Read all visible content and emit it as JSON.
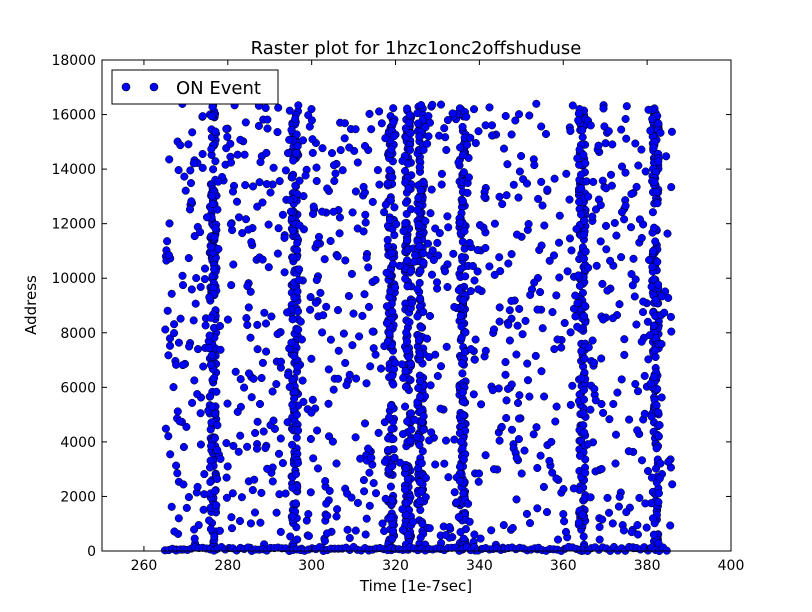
{
  "chart_data": {
    "type": "scatter",
    "title": "Raster plot for 1hzc1onc2offshuduse",
    "xlabel": "Time [1e-7sec]",
    "ylabel": "Address",
    "xlim": [
      250,
      400
    ],
    "ylim": [
      0,
      18000
    ],
    "x_ticks": [
      "260",
      "280",
      "300",
      "320",
      "340",
      "360",
      "380",
      "400"
    ],
    "y_ticks": [
      "0",
      "2000",
      "4000",
      "6000",
      "8000",
      "10000",
      "12000",
      "14000",
      "16000",
      "18000"
    ],
    "grid": false,
    "legend_position": "top-left",
    "series": [
      {
        "name": "ON Event",
        "marker": "circle",
        "color": "#0000ff",
        "dense_columns": [
          {
            "x": 276.5,
            "y_range": [
              0,
              16400
            ]
          },
          {
            "x": 296,
            "y_range": [
              0,
              16300
            ]
          },
          {
            "x": 319,
            "y_range": [
              0,
              16300
            ]
          },
          {
            "x": 323,
            "y_range": [
              0,
              16400
            ]
          },
          {
            "x": 326,
            "y_range": [
              0,
              16300
            ]
          },
          {
            "x": 336,
            "y_range": [
              0,
              16400
            ]
          },
          {
            "x": 364.5,
            "y_range": [
              0,
              16400
            ]
          },
          {
            "x": 382,
            "y_range": [
              0,
              16300
            ]
          }
        ],
        "scattered_range": {
          "x": [
            265,
            386
          ],
          "y": [
            0,
            16400
          ]
        },
        "baseline_row": {
          "y": 0,
          "x_range": [
            265,
            385
          ]
        }
      }
    ]
  }
}
